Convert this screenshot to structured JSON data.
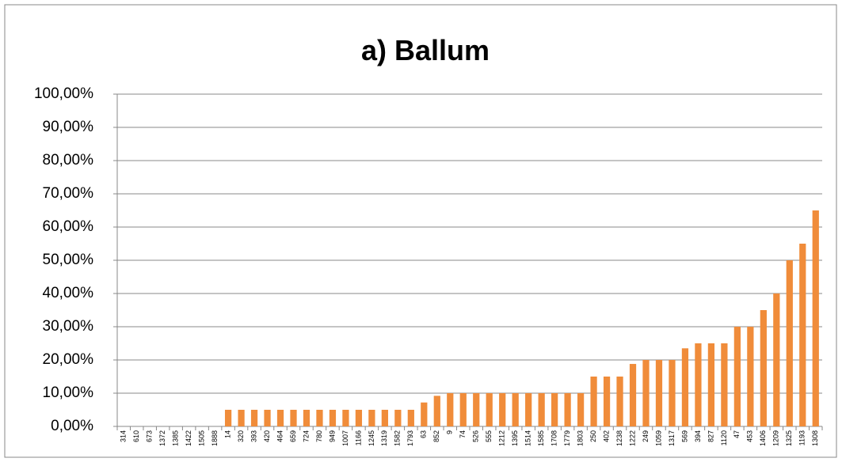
{
  "chart_data": {
    "type": "bar",
    "title": "a) Ballum",
    "categories": [
      "314",
      "610",
      "673",
      "1372",
      "1385",
      "1422",
      "1505",
      "1888",
      "14",
      "320",
      "393",
      "420",
      "464",
      "659",
      "724",
      "780",
      "949",
      "1007",
      "1166",
      "1245",
      "1319",
      "1582",
      "1793",
      "63",
      "852",
      "9",
      "74",
      "526",
      "555",
      "1212",
      "1395",
      "1514",
      "1585",
      "1708",
      "1779",
      "1803",
      "250",
      "402",
      "1238",
      "1222",
      "249",
      "1059",
      "1317",
      "569",
      "394",
      "827",
      "1120",
      "47",
      "453",
      "1406",
      "1209",
      "1325",
      "1193",
      "1308"
    ],
    "values": [
      0,
      0,
      0,
      0,
      0,
      0,
      0,
      0,
      5,
      5,
      5,
      5,
      5,
      5,
      5,
      5,
      5,
      5,
      5,
      5,
      5,
      5,
      5,
      7.2,
      9.2,
      10,
      10,
      10,
      10,
      10,
      10,
      10,
      10,
      10,
      10,
      10,
      15,
      15,
      15,
      18.8,
      20,
      20,
      20,
      23.5,
      25,
      25,
      25,
      30,
      30,
      35,
      40,
      50,
      55,
      65
    ],
    "color": "#f08c3a",
    "ylim": [
      0,
      100
    ],
    "yticks": [
      {
        "value": 0,
        "label": "0,00%"
      },
      {
        "value": 10,
        "label": "10,00%"
      },
      {
        "value": 20,
        "label": "20,00%"
      },
      {
        "value": 30,
        "label": "30,00%"
      },
      {
        "value": 40,
        "label": "40,00%"
      },
      {
        "value": 50,
        "label": "50,00%"
      },
      {
        "value": 60,
        "label": "60,00%"
      },
      {
        "value": 70,
        "label": "70,00%"
      },
      {
        "value": 80,
        "label": "80,00%"
      },
      {
        "value": 90,
        "label": "90,00%"
      },
      {
        "value": 100,
        "label": "100,00%"
      }
    ],
    "grid": true
  }
}
